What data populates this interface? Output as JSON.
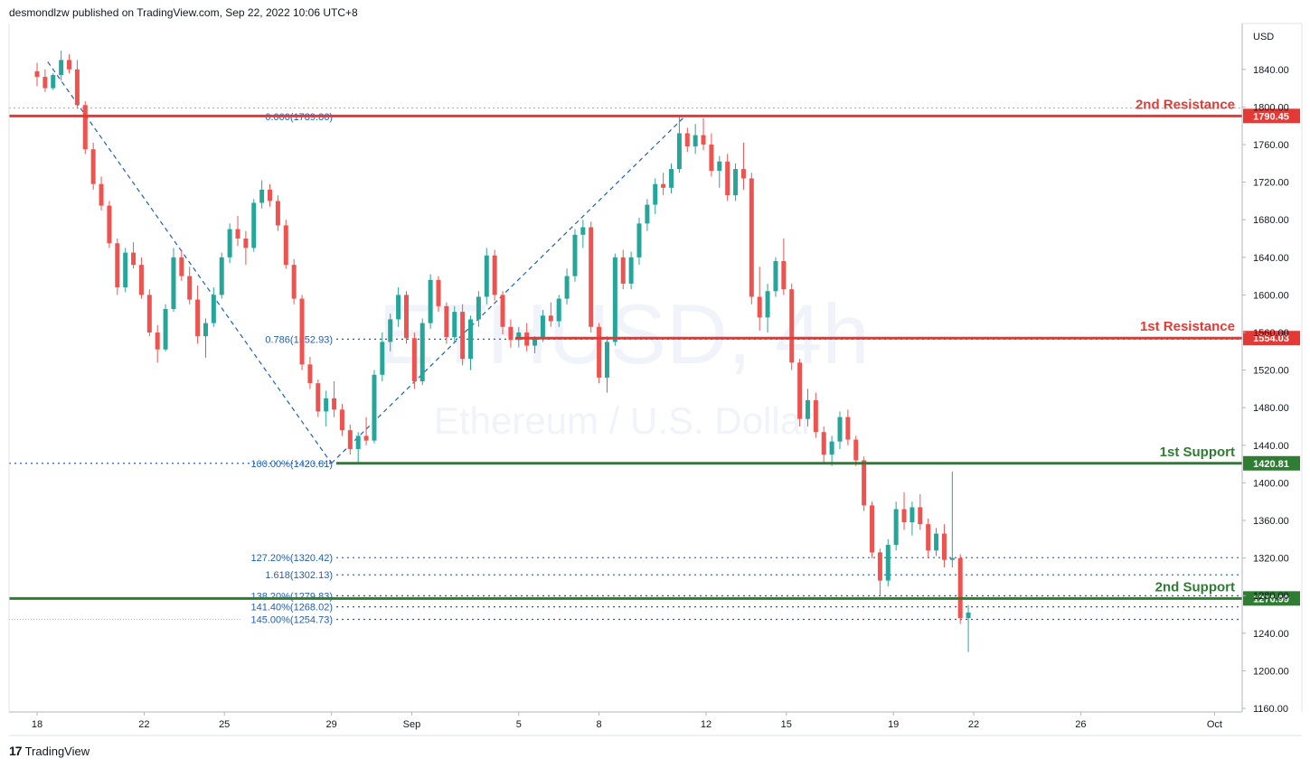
{
  "header": {
    "published": "desmondlzw published on TradingView.com, Sep 22, 2022 10:06 UTC+8"
  },
  "footer": {
    "logo": "17",
    "brand": "TradingView"
  },
  "watermark": {
    "symbol": "ETHUSD, 4h",
    "name": "Ethereum / U.S. Dollar"
  },
  "colors": {
    "up": "#26a69a",
    "down": "#ef5350",
    "resistance": "#e53935",
    "support": "#2e7d32",
    "fib": "#1f5fb5",
    "axis_text": "#131722",
    "grid": "#e0e3eb"
  },
  "chart_data": {
    "type": "candlestick",
    "symbol": "ETHUSD",
    "timeframe": "4h",
    "currency": "USD",
    "ylim": [
      1160,
      1860
    ],
    "x_ticks": [
      {
        "label": "18",
        "day": 18
      },
      {
        "label": "22",
        "day": 22
      },
      {
        "label": "25",
        "day": 25
      },
      {
        "label": "29",
        "day": 29
      },
      {
        "label": "Sep",
        "day": 32
      },
      {
        "label": "5",
        "day": 36
      },
      {
        "label": "8",
        "day": 39
      },
      {
        "label": "12",
        "day": 43
      },
      {
        "label": "15",
        "day": 46
      },
      {
        "label": "19",
        "day": 50
      },
      {
        "label": "22",
        "day": 53
      },
      {
        "label": "26",
        "day": 57
      },
      {
        "label": "Oct",
        "day": 62
      }
    ],
    "y_ticks": [
      "1840.00",
      "1800.00",
      "1760.00",
      "1720.00",
      "1680.00",
      "1640.00",
      "1600.00",
      "1560.00",
      "1520.00",
      "1480.00",
      "1440.00",
      "1400.00",
      "1360.00",
      "1320.00",
      "1280.00",
      "1240.00",
      "1200.00",
      "1160.00"
    ],
    "levels": [
      {
        "label": "2nd Resistance",
        "price": 1790.45,
        "tag": "1790.45",
        "kind": "resistance"
      },
      {
        "label": "1st Resistance",
        "price": 1554.03,
        "tag": "1554.03",
        "kind": "resistance"
      },
      {
        "label": "1st Support",
        "price": 1420.81,
        "tag": "1420.81",
        "kind": "support"
      },
      {
        "label": "2nd Support",
        "price": 1276.99,
        "tag": "1276.99",
        "kind": "support"
      }
    ],
    "fib_levels": [
      {
        "label": "0.000(1789.86)",
        "price": 1789.86
      },
      {
        "label": "0.786(1552.93)",
        "price": 1552.93
      },
      {
        "label": "100.00%(1420.81)",
        "price": 1420.81
      },
      {
        "label": "127.20%(1320.42)",
        "price": 1320.42
      },
      {
        "label": "1.618(1302.13)",
        "price": 1302.13
      },
      {
        "label": "138.20%(1279.83)",
        "price": 1279.83
      },
      {
        "label": "141.40%(1268.02)",
        "price": 1268.02
      },
      {
        "label": "145.00%(1254.73)",
        "price": 1254.73
      }
    ],
    "swings": [
      {
        "day": 18.4,
        "price": 1848
      },
      {
        "day": 29.0,
        "price": 1420.81
      },
      {
        "day": 42.2,
        "price": 1789.86
      }
    ],
    "candles": [
      [
        18.0,
        1838,
        1847,
        1822,
        1832
      ],
      [
        18.3,
        1832,
        1840,
        1816,
        1820
      ],
      [
        18.6,
        1820,
        1836,
        1818,
        1834
      ],
      [
        18.9,
        1834,
        1860,
        1828,
        1850
      ],
      [
        19.2,
        1850,
        1856,
        1836,
        1840
      ],
      [
        19.5,
        1840,
        1850,
        1798,
        1802
      ],
      [
        19.8,
        1802,
        1806,
        1750,
        1755
      ],
      [
        20.1,
        1755,
        1762,
        1712,
        1718
      ],
      [
        20.4,
        1718,
        1726,
        1690,
        1695
      ],
      [
        20.7,
        1695,
        1700,
        1650,
        1655
      ],
      [
        21.0,
        1655,
        1660,
        1600,
        1608
      ],
      [
        21.3,
        1608,
        1650,
        1603,
        1645
      ],
      [
        21.6,
        1645,
        1656,
        1628,
        1632
      ],
      [
        21.9,
        1632,
        1640,
        1596,
        1600
      ],
      [
        22.2,
        1600,
        1606,
        1556,
        1560
      ],
      [
        22.5,
        1560,
        1568,
        1528,
        1542
      ],
      [
        22.8,
        1542,
        1590,
        1540,
        1585
      ],
      [
        23.1,
        1585,
        1650,
        1582,
        1640
      ],
      [
        23.4,
        1640,
        1648,
        1615,
        1620
      ],
      [
        23.7,
        1620,
        1630,
        1590,
        1595
      ],
      [
        24.0,
        1595,
        1610,
        1548,
        1556
      ],
      [
        24.3,
        1556,
        1575,
        1533,
        1570
      ],
      [
        24.6,
        1570,
        1608,
        1566,
        1600
      ],
      [
        24.9,
        1600,
        1645,
        1596,
        1640
      ],
      [
        25.2,
        1640,
        1676,
        1634,
        1670
      ],
      [
        25.5,
        1670,
        1684,
        1652,
        1660
      ],
      [
        25.8,
        1660,
        1668,
        1632,
        1650
      ],
      [
        26.1,
        1650,
        1702,
        1646,
        1698
      ],
      [
        26.4,
        1698,
        1722,
        1692,
        1712
      ],
      [
        26.7,
        1712,
        1718,
        1694,
        1700
      ],
      [
        27.0,
        1700,
        1706,
        1668,
        1674
      ],
      [
        27.3,
        1674,
        1680,
        1628,
        1632
      ],
      [
        27.6,
        1632,
        1638,
        1590,
        1596
      ],
      [
        27.9,
        1596,
        1600,
        1520,
        1526
      ],
      [
        28.2,
        1526,
        1534,
        1500,
        1506
      ],
      [
        28.5,
        1506,
        1510,
        1470,
        1476
      ],
      [
        28.8,
        1476,
        1498,
        1460,
        1490
      ],
      [
        29.1,
        1490,
        1508,
        1470,
        1478
      ],
      [
        29.4,
        1478,
        1484,
        1450,
        1456
      ],
      [
        29.7,
        1456,
        1462,
        1430,
        1436
      ],
      [
        30.0,
        1436,
        1454,
        1421,
        1450
      ],
      [
        30.3,
        1450,
        1470,
        1440,
        1445
      ],
      [
        30.6,
        1445,
        1520,
        1442,
        1515
      ],
      [
        30.9,
        1515,
        1560,
        1508,
        1550
      ],
      [
        31.2,
        1550,
        1580,
        1540,
        1574
      ],
      [
        31.5,
        1574,
        1608,
        1566,
        1600
      ],
      [
        31.8,
        1600,
        1604,
        1548,
        1554
      ],
      [
        32.1,
        1554,
        1560,
        1500,
        1508
      ],
      [
        32.4,
        1508,
        1575,
        1504,
        1570
      ],
      [
        32.7,
        1570,
        1622,
        1564,
        1616
      ],
      [
        33.0,
        1616,
        1620,
        1582,
        1588
      ],
      [
        33.3,
        1588,
        1592,
        1548,
        1555
      ],
      [
        33.6,
        1555,
        1588,
        1550,
        1582
      ],
      [
        33.9,
        1582,
        1590,
        1525,
        1532
      ],
      [
        34.2,
        1532,
        1578,
        1520,
        1574
      ],
      [
        34.5,
        1574,
        1604,
        1566,
        1598
      ],
      [
        34.8,
        1598,
        1650,
        1590,
        1642
      ],
      [
        35.1,
        1642,
        1648,
        1594,
        1600
      ],
      [
        35.4,
        1600,
        1604,
        1558,
        1566
      ],
      [
        35.7,
        1566,
        1574,
        1544,
        1552
      ],
      [
        36.0,
        1552,
        1566,
        1544,
        1560
      ],
      [
        36.3,
        1560,
        1570,
        1540,
        1546
      ],
      [
        36.6,
        1546,
        1556,
        1538,
        1554
      ],
      [
        36.9,
        1554,
        1584,
        1550,
        1578
      ],
      [
        37.2,
        1578,
        1592,
        1566,
        1572
      ],
      [
        37.5,
        1572,
        1600,
        1566,
        1596
      ],
      [
        37.8,
        1596,
        1628,
        1590,
        1620
      ],
      [
        38.1,
        1620,
        1670,
        1614,
        1664
      ],
      [
        38.4,
        1664,
        1680,
        1650,
        1672
      ],
      [
        38.7,
        1672,
        1678,
        1560,
        1566
      ],
      [
        39.0,
        1566,
        1570,
        1506,
        1512
      ],
      [
        39.3,
        1512,
        1556,
        1496,
        1550
      ],
      [
        39.6,
        1550,
        1644,
        1546,
        1640
      ],
      [
        39.9,
        1640,
        1648,
        1606,
        1612
      ],
      [
        40.2,
        1612,
        1646,
        1606,
        1640
      ],
      [
        40.5,
        1640,
        1682,
        1632,
        1676
      ],
      [
        40.8,
        1676,
        1702,
        1668,
        1696
      ],
      [
        41.1,
        1696,
        1724,
        1686,
        1718
      ],
      [
        41.4,
        1718,
        1730,
        1706,
        1714
      ],
      [
        41.7,
        1714,
        1740,
        1708,
        1734
      ],
      [
        42.0,
        1734,
        1790,
        1730,
        1772
      ],
      [
        42.3,
        1772,
        1778,
        1752,
        1758
      ],
      [
        42.6,
        1758,
        1782,
        1750,
        1770
      ],
      [
        42.9,
        1770,
        1788,
        1754,
        1760
      ],
      [
        43.2,
        1760,
        1772,
        1726,
        1732
      ],
      [
        43.5,
        1732,
        1748,
        1714,
        1742
      ],
      [
        43.8,
        1742,
        1750,
        1700,
        1706
      ],
      [
        44.1,
        1706,
        1740,
        1700,
        1734
      ],
      [
        44.4,
        1734,
        1762,
        1712,
        1724
      ],
      [
        44.7,
        1724,
        1730,
        1590,
        1598
      ],
      [
        45.0,
        1598,
        1630,
        1562,
        1576
      ],
      [
        45.3,
        1576,
        1612,
        1560,
        1604
      ],
      [
        45.6,
        1604,
        1640,
        1598,
        1636
      ],
      [
        45.9,
        1636,
        1660,
        1600,
        1606
      ],
      [
        46.2,
        1606,
        1612,
        1520,
        1528
      ],
      [
        46.5,
        1528,
        1532,
        1460,
        1468
      ],
      [
        46.8,
        1468,
        1500,
        1460,
        1488
      ],
      [
        47.1,
        1488,
        1496,
        1448,
        1454
      ],
      [
        47.4,
        1454,
        1460,
        1420,
        1430
      ],
      [
        47.7,
        1430,
        1450,
        1418,
        1444
      ],
      [
        48.0,
        1444,
        1476,
        1436,
        1470
      ],
      [
        48.3,
        1470,
        1478,
        1440,
        1446
      ],
      [
        48.6,
        1446,
        1450,
        1418,
        1424
      ],
      [
        48.9,
        1424,
        1428,
        1370,
        1376
      ],
      [
        49.2,
        1376,
        1380,
        1320,
        1326
      ],
      [
        49.5,
        1326,
        1330,
        1280,
        1296
      ],
      [
        49.8,
        1296,
        1340,
        1290,
        1334
      ],
      [
        50.1,
        1334,
        1380,
        1328,
        1372
      ],
      [
        50.4,
        1372,
        1390,
        1350,
        1358
      ],
      [
        50.7,
        1358,
        1380,
        1344,
        1374
      ],
      [
        51.0,
        1374,
        1388,
        1350,
        1356
      ],
      [
        51.3,
        1356,
        1362,
        1320,
        1328
      ],
      [
        51.6,
        1328,
        1352,
        1322,
        1346
      ],
      [
        51.9,
        1346,
        1356,
        1310,
        1318
      ],
      [
        52.2,
        1318,
        1412,
        1310,
        1320
      ],
      [
        52.5,
        1320,
        1324,
        1250,
        1256
      ],
      [
        52.8,
        1256,
        1270,
        1220,
        1262
      ]
    ]
  }
}
